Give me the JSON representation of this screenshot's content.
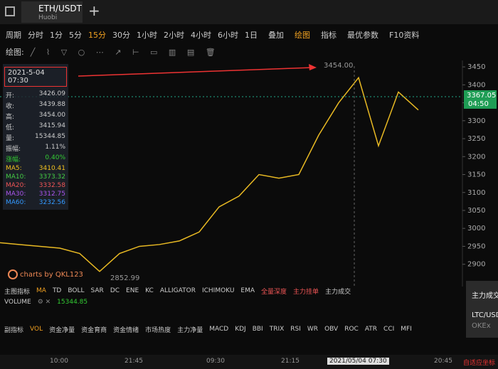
{
  "tab": {
    "pair": "ETH/USDT",
    "exchange": "Huobi"
  },
  "toolbar": {
    "label": "周期",
    "periods": [
      "分时",
      "1分",
      "5分",
      "15分",
      "30分",
      "1小时",
      "2小时",
      "4小时",
      "6小时",
      "1日"
    ],
    "tools": [
      "叠加",
      "绘图",
      "指标",
      "最优参数",
      "F10资料"
    ]
  },
  "draw_label": "绘图:",
  "info": {
    "date": "2021-5-04 07:30",
    "rows": [
      {
        "label": "开:",
        "value": "3426.09"
      },
      {
        "label": "收:",
        "value": "3439.88"
      },
      {
        "label": "高:",
        "value": "3454.00"
      },
      {
        "label": "低:",
        "value": "3415.94"
      },
      {
        "label": "量:",
        "value": "15344.85"
      },
      {
        "label": "振幅:",
        "value": "1.11%"
      },
      {
        "label": "涨幅:",
        "value": "0.40%"
      },
      {
        "label": "MA5:",
        "value": "3410.41"
      },
      {
        "label": "MA10:",
        "value": "3373.32"
      },
      {
        "label": "MA20:",
        "value": "3332.58"
      },
      {
        "label": "MA30:",
        "value": "3312.75"
      },
      {
        "label": "MA60:",
        "value": "3232.56"
      }
    ]
  },
  "chart_data": {
    "type": "line",
    "categories": [
      null,
      null,
      null,
      null,
      null,
      null,
      null,
      null,
      null,
      null,
      null,
      null,
      null,
      null,
      null,
      null,
      null,
      null,
      null,
      null,
      null,
      null
    ],
    "values": [
      2960,
      2955,
      2950,
      2945,
      2930,
      2880,
      2930,
      2950,
      2955,
      2965,
      2990,
      3060,
      3090,
      3150,
      3140,
      3150,
      3260,
      3350,
      3420,
      3230,
      3380,
      3330
    ],
    "color": "#e8b923",
    "ylim": [
      2838,
      3468
    ],
    "yticks": [
      2900,
      2950,
      3000,
      3050,
      3100,
      3150,
      3200,
      3250,
      3300,
      3350,
      3400,
      3450
    ],
    "last_price": {
      "value": 3367.05,
      "label": "3367.05"
    },
    "high_label": "3454.00",
    "low_label": "2852.99"
  },
  "last_time": "04:50",
  "watermark": "charts by QKL123",
  "main_indicators": [
    "主图指标",
    "MA",
    "TD",
    "BOLL",
    "SAR",
    "DC",
    "ENE",
    "KC",
    "ALLIGATOR",
    "ICHIMOKU",
    "EMA",
    "全量深度",
    "主力挂单",
    "主力成交"
  ],
  "volume": {
    "label": "VOLUME",
    "value": "15344.85"
  },
  "sub_indicators": [
    "副指标",
    "VOL",
    "资金净量",
    "资金育商",
    "资金情绪",
    "市场热度",
    "主力净量",
    "MACD",
    "KDJ",
    "BBI",
    "TRIX",
    "RSI",
    "WR",
    "OBV",
    "ROC",
    "ATR",
    "CCI",
    "MFI"
  ],
  "time_labels": [
    "10:00",
    "21:45",
    "09:30",
    "21:15",
    "2021/05/04 07:30",
    "20:45"
  ],
  "auto_scale": "自适应坐标",
  "popup": {
    "title": "主力成交",
    "pair": "LTC/USDT",
    "exchange": "OKEx"
  }
}
